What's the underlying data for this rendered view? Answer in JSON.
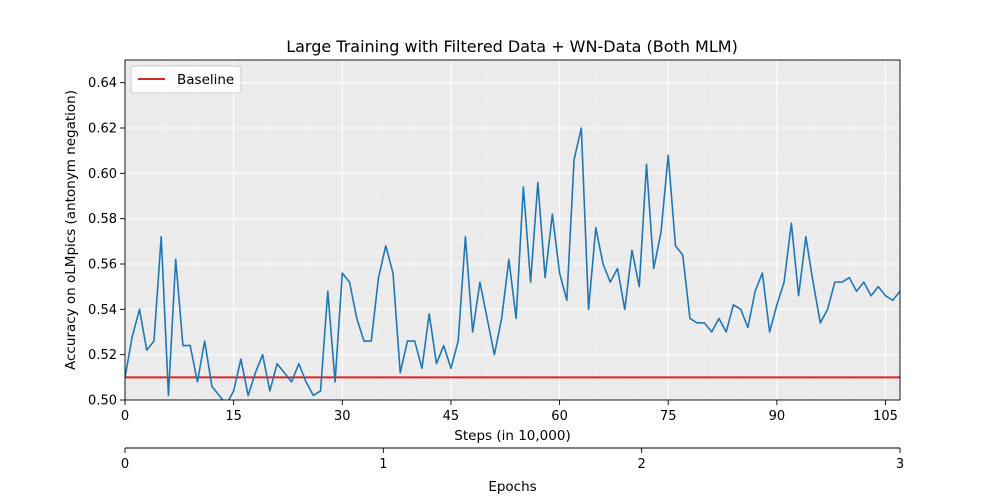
{
  "chart_data": {
    "type": "line",
    "title": "Large Training with Filtered Data + WN-Data (Both MLM)",
    "xlabel": "Steps (in 10,000)",
    "ylabel": "Accuracy on oLMpics (antonym negation)",
    "xlim": [
      0,
      107
    ],
    "ylim": [
      0.5,
      0.65
    ],
    "xticks": [
      0,
      15,
      30,
      45,
      60,
      75,
      90,
      105
    ],
    "yticks": [
      0.5,
      0.52,
      0.54,
      0.56,
      0.58,
      0.6,
      0.62,
      0.64
    ],
    "grid": true,
    "legend_position": "top-left",
    "secondary_xaxis": {
      "label": "Epochs",
      "lim": [
        0,
        3
      ],
      "ticks": [
        0,
        1,
        2,
        3
      ]
    },
    "baseline": {
      "name": "Baseline",
      "value": 0.51,
      "color": "#d62728"
    },
    "series": [
      {
        "color": "#1f77b4",
        "x": [
          0,
          1,
          2,
          3,
          4,
          5,
          6,
          7,
          8,
          9,
          10,
          11,
          12,
          13,
          14,
          15,
          16,
          17,
          18,
          19,
          20,
          21,
          22,
          23,
          24,
          25,
          26,
          27,
          28,
          29,
          30,
          31,
          32,
          33,
          34,
          35,
          36,
          37,
          38,
          39,
          40,
          41,
          42,
          43,
          44,
          45,
          46,
          47,
          48,
          49,
          50,
          51,
          52,
          53,
          54,
          55,
          56,
          57,
          58,
          59,
          60,
          61,
          62,
          63,
          64,
          65,
          66,
          67,
          68,
          69,
          70,
          71,
          72,
          73,
          74,
          75,
          76,
          77,
          78,
          79,
          80,
          81,
          82,
          83,
          84,
          85,
          86,
          87,
          88,
          89,
          90,
          91,
          92,
          93,
          94,
          95,
          96,
          97,
          98,
          99,
          100,
          101,
          102,
          103,
          104,
          105,
          106,
          107
        ],
        "values": [
          0.51,
          0.528,
          0.54,
          0.522,
          0.526,
          0.572,
          0.502,
          0.562,
          0.524,
          0.524,
          0.508,
          0.526,
          0.506,
          0.502,
          0.498,
          0.504,
          0.518,
          0.502,
          0.512,
          0.52,
          0.504,
          0.516,
          0.512,
          0.508,
          0.516,
          0.508,
          0.502,
          0.504,
          0.548,
          0.508,
          0.556,
          0.552,
          0.536,
          0.526,
          0.526,
          0.554,
          0.568,
          0.556,
          0.512,
          0.526,
          0.526,
          0.514,
          0.538,
          0.516,
          0.524,
          0.514,
          0.526,
          0.572,
          0.53,
          0.552,
          0.536,
          0.52,
          0.536,
          0.562,
          0.536,
          0.594,
          0.552,
          0.596,
          0.554,
          0.582,
          0.556,
          0.544,
          0.606,
          0.62,
          0.54,
          0.576,
          0.56,
          0.552,
          0.558,
          0.54,
          0.566,
          0.55,
          0.604,
          0.558,
          0.574,
          0.608,
          0.568,
          0.564,
          0.536,
          0.534,
          0.534,
          0.53,
          0.536,
          0.53,
          0.542,
          0.54,
          0.532,
          0.548,
          0.556,
          0.53,
          0.542,
          0.552,
          0.578,
          0.546,
          0.572,
          0.552,
          0.534,
          0.54,
          0.552,
          0.552,
          0.554,
          0.548,
          0.552,
          0.546,
          0.55,
          0.546,
          0.544,
          0.548
        ]
      }
    ]
  }
}
